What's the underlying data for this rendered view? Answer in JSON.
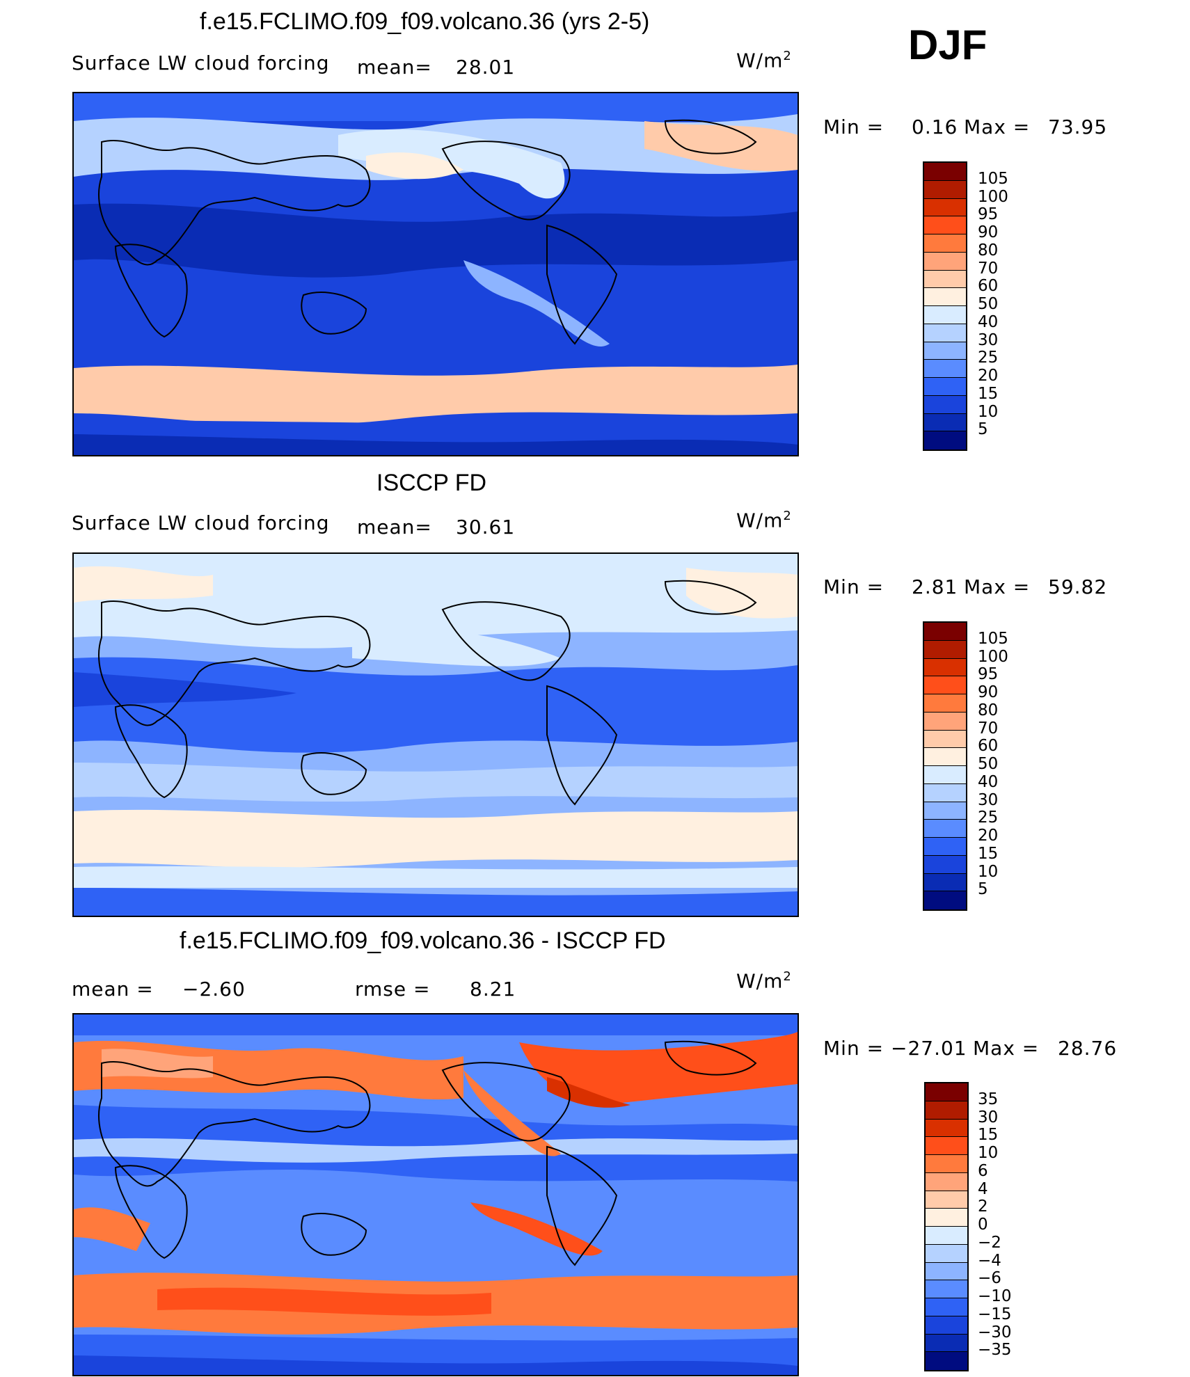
{
  "page_label": "DJF",
  "units_base": "W/m",
  "units_exp": "2",
  "panels": [
    {
      "title": "f.e15.FCLIMO.f09_f09.volcano.36 (yrs 2-5)",
      "variable": "Surface LW cloud forcing",
      "mean_label": "mean=",
      "mean_value": "28.01",
      "min_label": "Min =",
      "min_value": "0.16",
      "max_label": "Max =",
      "max_value": "73.95"
    },
    {
      "title": "ISCCP FD",
      "variable": "Surface LW cloud forcing",
      "mean_label": "mean=",
      "mean_value": "30.61",
      "min_label": "Min =",
      "min_value": "2.81",
      "max_label": "Max =",
      "max_value": "59.82"
    },
    {
      "title": "f.e15.FCLIMO.f09_f09.volcano.36 - ISCCP FD",
      "mean_label": "mean =",
      "mean_value": "−2.60",
      "rmse_label": "rmse =",
      "rmse_value": "8.21",
      "min_label": "Min =",
      "min_value": "−27.01",
      "max_label": "Max =",
      "max_value": "28.76"
    }
  ],
  "chart_data": [
    {
      "type": "heatmap",
      "title": "f.e15.FCLIMO.f09_f09.volcano.36 (yrs 2-5)",
      "subtitle": "Surface LW cloud forcing",
      "units": "W/m2",
      "season": "DJF",
      "mean": 28.01,
      "min": 0.16,
      "max": 73.95,
      "colorbar_levels": [
        "105",
        "100",
        "95",
        "90",
        "80",
        "70",
        "60",
        "50",
        "40",
        "30",
        "25",
        "20",
        "15",
        "10",
        "5"
      ],
      "colorbar_colors": [
        "#7a0000",
        "#b01c00",
        "#d93000",
        "#ff4f1a",
        "#ff7a3d",
        "#ffa47a",
        "#ffcbaa",
        "#fff0e0",
        "#d9ecff",
        "#b5d2ff",
        "#8db4ff",
        "#5a8cff",
        "#2f62f5",
        "#1a44dc",
        "#0a2cb4",
        "#000c80"
      ]
    },
    {
      "type": "heatmap",
      "title": "ISCCP FD",
      "subtitle": "Surface LW cloud forcing",
      "units": "W/m2",
      "season": "DJF",
      "mean": 30.61,
      "min": 2.81,
      "max": 59.82,
      "colorbar_levels": [
        "105",
        "100",
        "95",
        "90",
        "80",
        "70",
        "60",
        "50",
        "40",
        "30",
        "25",
        "20",
        "15",
        "10",
        "5"
      ],
      "colorbar_colors": [
        "#7a0000",
        "#b01c00",
        "#d93000",
        "#ff4f1a",
        "#ff7a3d",
        "#ffa47a",
        "#ffcbaa",
        "#fff0e0",
        "#d9ecff",
        "#b5d2ff",
        "#8db4ff",
        "#5a8cff",
        "#2f62f5",
        "#1a44dc",
        "#0a2cb4",
        "#000c80"
      ]
    },
    {
      "type": "heatmap",
      "title": "f.e15.FCLIMO.f09_f09.volcano.36 - ISCCP FD",
      "units": "W/m2",
      "season": "DJF",
      "mean": -2.6,
      "rmse": 8.21,
      "min": -27.01,
      "max": 28.76,
      "colorbar_levels": [
        "35",
        "30",
        "15",
        "10",
        "6",
        "4",
        "2",
        "0",
        "−2",
        "−4",
        "−6",
        "−10",
        "−15",
        "−30",
        "−35"
      ],
      "colorbar_colors": [
        "#7a0000",
        "#b01c00",
        "#d93000",
        "#ff4f1a",
        "#ff7a3d",
        "#ffa47a",
        "#ffcbaa",
        "#fff0e0",
        "#d9ecff",
        "#b5d2ff",
        "#8db4ff",
        "#5a8cff",
        "#2f62f5",
        "#1a44dc",
        "#0a2cb4",
        "#000c80"
      ]
    }
  ]
}
